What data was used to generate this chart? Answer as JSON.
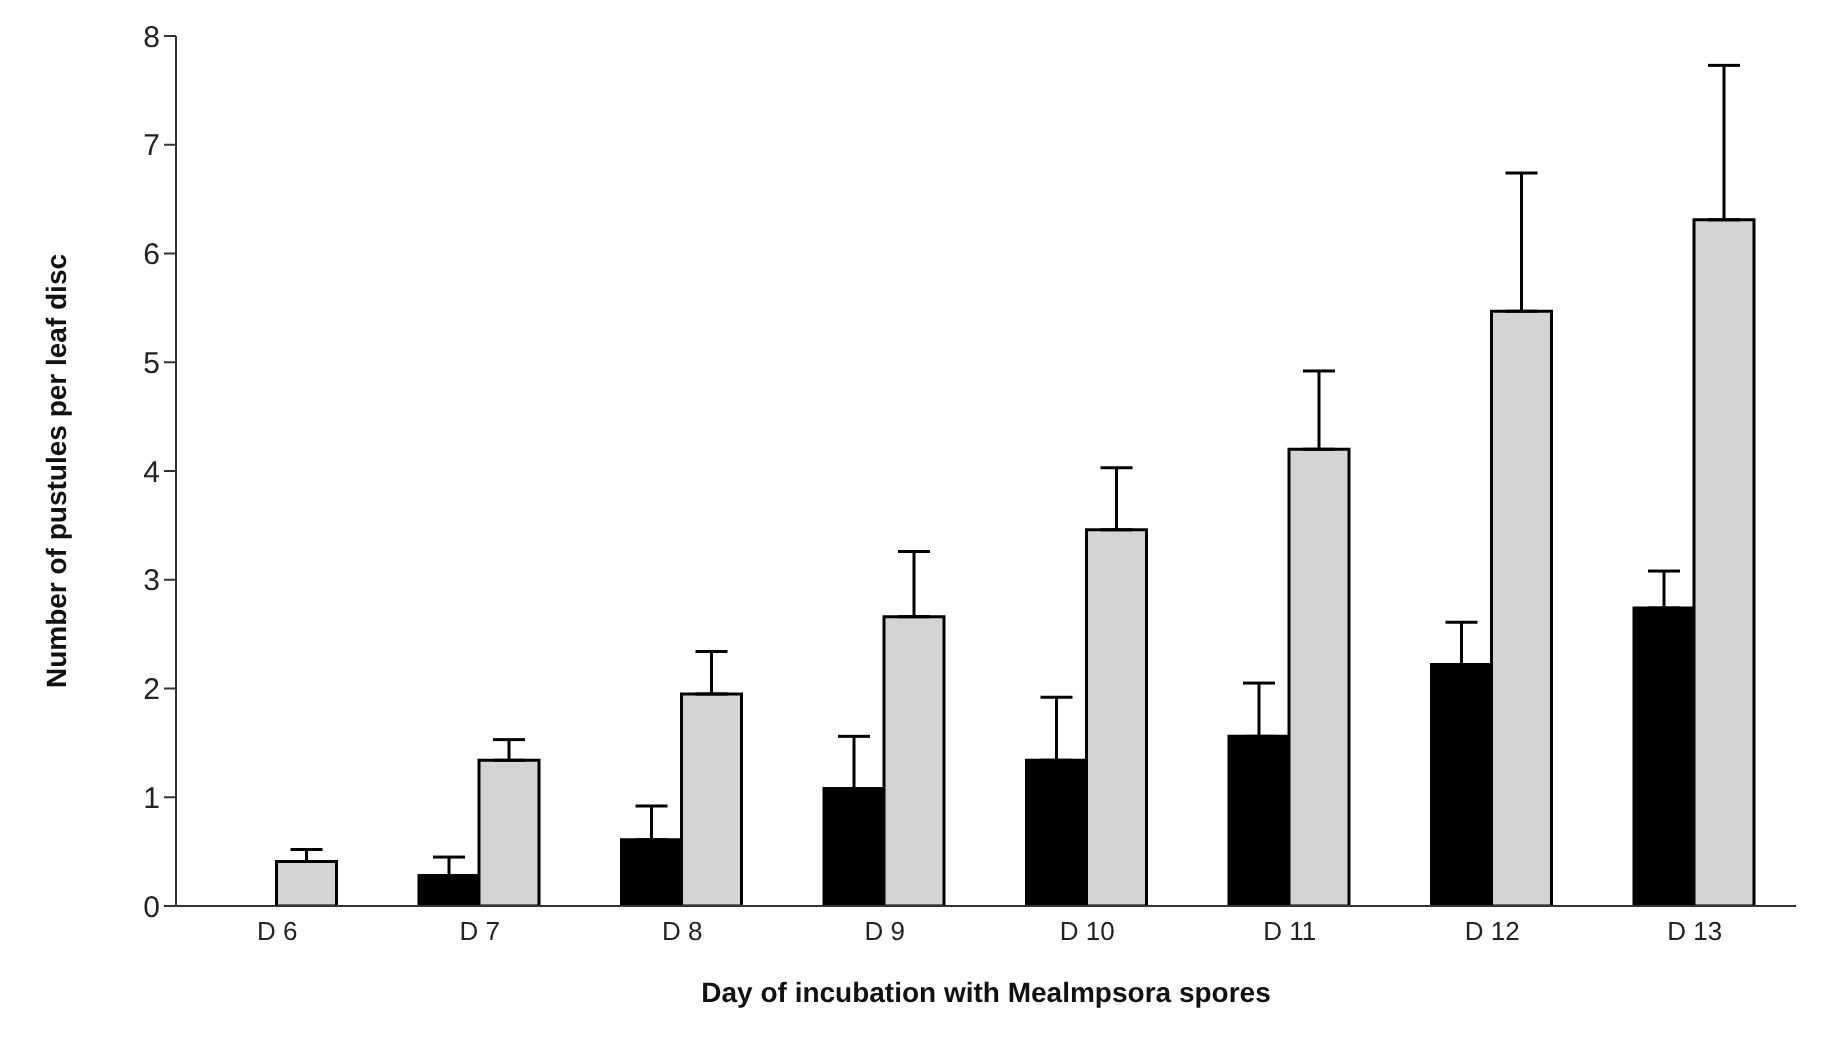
{
  "chart_data": {
    "type": "bar",
    "xlabel": "Day of incubation with Mealmpsora spores",
    "ylabel": "Number of pustules per leaf disc",
    "categories": [
      "D 6",
      "D 7",
      "D 8",
      "D 9",
      "D 10",
      "D 11",
      "D 12",
      "D 13"
    ],
    "series": [
      {
        "color": "#000000",
        "values": [
          0,
          0.28,
          0.61,
          1.08,
          1.34,
          1.56,
          2.22,
          2.74
        ],
        "errors": [
          null,
          [
            0.28,
            0.45
          ],
          [
            0.61,
            0.92
          ],
          [
            1.08,
            1.56
          ],
          [
            1.34,
            1.92
          ],
          [
            1.56,
            2.05
          ],
          [
            2.22,
            2.61
          ],
          [
            2.74,
            3.08
          ]
        ]
      },
      {
        "color": "#d4d4d4",
        "values": [
          0.41,
          1.34,
          1.95,
          2.66,
          3.46,
          4.2,
          5.47,
          6.31
        ],
        "errors": [
          [
            0.41,
            0.52
          ],
          [
            1.34,
            1.53
          ],
          [
            1.95,
            2.34
          ],
          [
            2.66,
            3.26
          ],
          [
            3.46,
            4.03
          ],
          [
            4.2,
            4.92
          ],
          [
            5.47,
            6.74
          ],
          [
            6.31,
            7.73
          ]
        ]
      }
    ],
    "ylim": [
      0,
      8
    ],
    "yticks": [
      0,
      1,
      2,
      3,
      4,
      5,
      6,
      7,
      8
    ],
    "grid": false,
    "legend": false
  }
}
